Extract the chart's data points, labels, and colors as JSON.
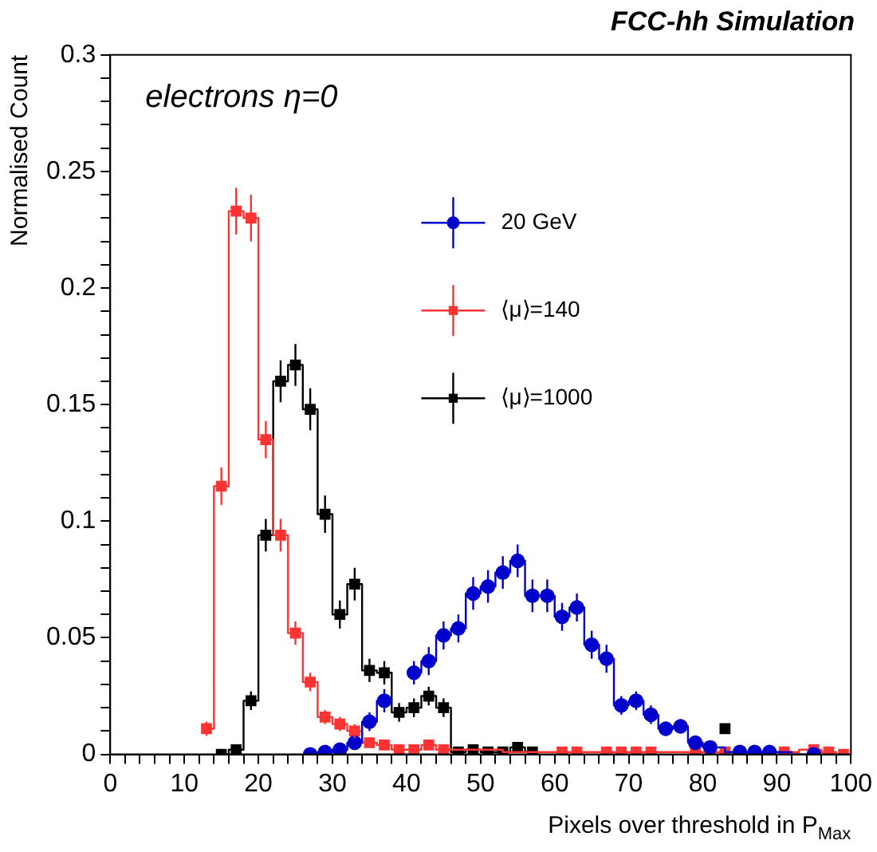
{
  "chart_data": {
    "type": "step",
    "title": "FCC-hh Simulation",
    "xlabel": "Pixels over threshold in P$_{Max}$",
    "ylabel": "Normalised Count",
    "annotations": [
      "electrons η=0"
    ],
    "xlim": [
      0,
      100
    ],
    "xticks": [
      0,
      {
        "value": 2,
        "label": null
      },
      {
        "value": 4,
        "label": null
      },
      {
        "value": 6,
        "label": null
      },
      {
        "value": 8,
        "label": null
      },
      10,
      {
        "value": 12,
        "label": null
      },
      {
        "value": 14,
        "label": null
      },
      {
        "value": 16,
        "label": null
      },
      {
        "value": 18,
        "label": null
      },
      20,
      {
        "value": 22,
        "label": null
      },
      {
        "value": 24,
        "label": null
      },
      {
        "value": 26,
        "label": null
      },
      {
        "value": 28,
        "label": null
      },
      30,
      {
        "value": 32,
        "label": null
      },
      {
        "value": 34,
        "label": null
      },
      {
        "value": 36,
        "label": null
      },
      {
        "value": 38,
        "label": null
      },
      40,
      {
        "value": 42,
        "label": null
      },
      {
        "value": 44,
        "label": null
      },
      {
        "value": 46,
        "label": null
      },
      {
        "value": 48,
        "label": null
      },
      50,
      {
        "value": 52,
        "label": null
      },
      {
        "value": 54,
        "label": null
      },
      {
        "value": 56,
        "label": null
      },
      {
        "value": 58,
        "label": null
      },
      60,
      {
        "value": 62,
        "label": null
      },
      {
        "value": 64,
        "label": null
      },
      {
        "value": 66,
        "label": null
      },
      {
        "value": 68,
        "label": null
      },
      70,
      {
        "value": 72,
        "label": null
      },
      {
        "value": 74,
        "label": null
      },
      {
        "value": 76,
        "label": null
      },
      {
        "value": 78,
        "label": null
      },
      80,
      {
        "value": 82,
        "label": null
      },
      {
        "value": 84,
        "label": null
      },
      {
        "value": 86,
        "label": null
      },
      {
        "value": 88,
        "label": null
      },
      90,
      {
        "value": 92,
        "label": null
      },
      {
        "value": 94,
        "label": null
      },
      {
        "value": 96,
        "label": null
      },
      {
        "value": 98,
        "label": null
      },
      100
    ],
    "ylim": [
      0,
      0.3
    ],
    "yticks": [
      0,
      {
        "value": 0.01,
        "label": null
      },
      {
        "value": 0.02,
        "label": null
      },
      {
        "value": 0.03,
        "label": null
      },
      {
        "value": 0.04,
        "label": null
      },
      0.05,
      {
        "value": 0.06,
        "label": null
      },
      {
        "value": 0.07,
        "label": null
      },
      {
        "value": 0.08,
        "label": null
      },
      {
        "value": 0.09,
        "label": null
      },
      0.1,
      {
        "value": 0.11,
        "label": null
      },
      {
        "value": 0.12,
        "label": null
      },
      {
        "value": 0.13,
        "label": null
      },
      {
        "value": 0.14,
        "label": null
      },
      0.15,
      {
        "value": 0.16,
        "label": null
      },
      {
        "value": 0.17,
        "label": null
      },
      {
        "value": 0.18,
        "label": null
      },
      {
        "value": 0.19,
        "label": null
      },
      0.2,
      {
        "value": 0.21,
        "label": null
      },
      {
        "value": 0.22,
        "label": null
      },
      {
        "value": 0.23,
        "label": null
      },
      {
        "value": 0.24,
        "label": null
      },
      0.25,
      {
        "value": 0.26,
        "label": null
      },
      {
        "value": 0.27,
        "label": null
      },
      {
        "value": 0.28,
        "label": null
      },
      {
        "value": 0.29,
        "label": null
      },
      0.3
    ],
    "grid": false,
    "legend": "top center",
    "series": [
      {
        "name": "20 GeV",
        "color": "#0000cc",
        "marker": "circle",
        "x": [
          27,
          29,
          31,
          33,
          35,
          37,
          39,
          41,
          43,
          45,
          47,
          49,
          51,
          53,
          55,
          57,
          59,
          61,
          63,
          65,
          67,
          69,
          71,
          73,
          75,
          77,
          79,
          81,
          85,
          87,
          89,
          95
        ],
        "values": [
          0,
          0.001,
          0.002,
          0.005,
          0.014,
          0.023,
          null,
          0.035,
          0.04,
          0.051,
          0.054,
          0.069,
          0.072,
          0.078,
          0.083,
          0.068,
          0.068,
          0.059,
          0.063,
          0.047,
          0.041,
          0.021,
          0.023,
          0.017,
          0.011,
          0.012,
          0.005,
          0.003,
          0.001,
          0.001,
          0.001,
          0
        ],
        "errors": [
          null,
          null,
          null,
          0.003,
          0.004,
          0.005,
          null,
          0.005,
          0.006,
          0.006,
          0.006,
          0.007,
          0.007,
          0.007,
          0.007,
          0.007,
          0.007,
          0.006,
          0.006,
          0.006,
          0.006,
          0.004,
          0.004,
          0.004,
          0.003,
          0.003,
          null,
          null,
          null,
          null,
          null,
          null
        ]
      },
      {
        "name": "⟨μ⟩=140",
        "color": "#ff3333",
        "marker": "square",
        "x": [
          13,
          15,
          17,
          19,
          21,
          23,
          25,
          27,
          29,
          31,
          33,
          35,
          37,
          39,
          41,
          43,
          45,
          61,
          63,
          67,
          69,
          71,
          73,
          79,
          81,
          83,
          85,
          87,
          91,
          95,
          97,
          99
        ],
        "values": [
          0.011,
          0.115,
          0.233,
          0.23,
          0.135,
          0.094,
          0.052,
          0.031,
          0.016,
          0.013,
          0.01,
          0.005,
          0.004,
          0.002,
          0.002,
          0.004,
          0.002,
          0.001,
          0.001,
          0.001,
          0.001,
          0.001,
          0.001,
          0.001,
          0.001,
          0.001,
          0.001,
          0.001,
          0.001,
          0.002,
          0.001,
          0
        ],
        "errors": [
          0.003,
          0.008,
          0.01,
          0.01,
          0.008,
          0.007,
          0.005,
          0.004,
          0.003,
          0.003,
          0.003,
          null,
          null,
          null,
          null,
          null,
          null,
          null,
          null,
          null,
          null,
          null,
          null,
          null,
          null,
          null,
          null,
          null,
          null,
          null,
          null,
          null
        ]
      },
      {
        "name": "⟨μ⟩=1000",
        "color": "#000000",
        "marker": "square",
        "x": [
          15,
          17,
          19,
          21,
          23,
          25,
          27,
          29,
          31,
          33,
          35,
          37,
          39,
          41,
          43,
          45,
          47,
          49,
          51,
          53,
          55,
          57,
          59,
          83
        ],
        "values": [
          0,
          0.002,
          0.023,
          0.094,
          0.16,
          0.167,
          0.148,
          0.103,
          0.06,
          0.073,
          0.036,
          0.035,
          0.018,
          0.02,
          0.025,
          0.02,
          0.001,
          0.002,
          0.001,
          0.001,
          0.003,
          0.001,
          null,
          0.011
        ],
        "errors": [
          null,
          null,
          0.004,
          0.007,
          0.009,
          0.009,
          0.009,
          0.008,
          0.006,
          0.007,
          0.005,
          0.005,
          0.004,
          0.004,
          0.004,
          0.004,
          null,
          null,
          null,
          null,
          null,
          null,
          null,
          null
        ]
      }
    ]
  }
}
